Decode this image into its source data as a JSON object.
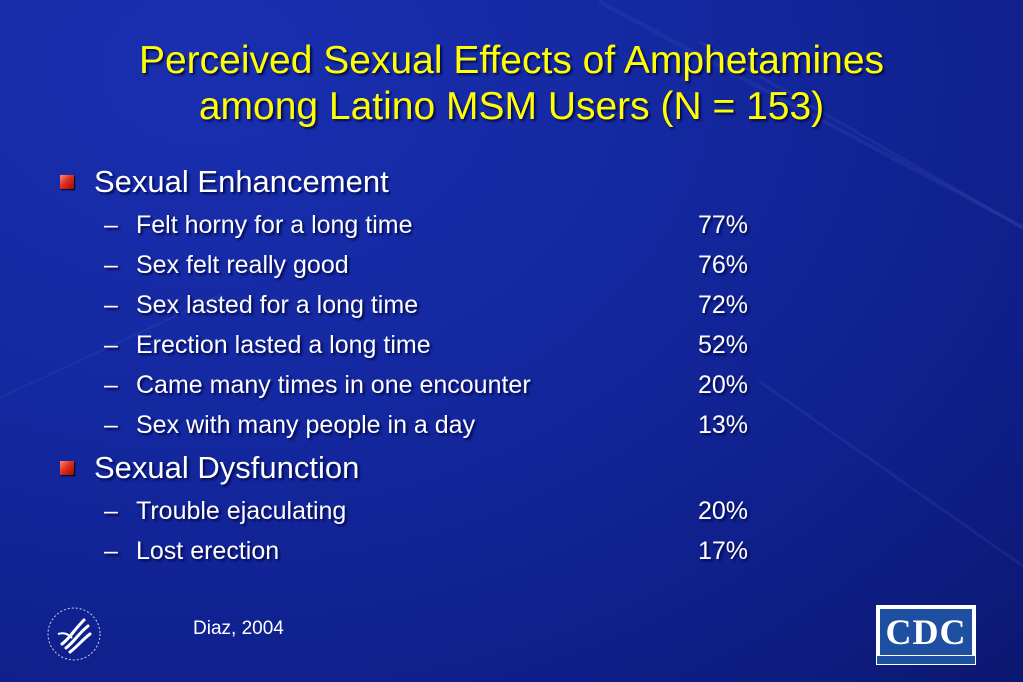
{
  "title_line1": "Perceived Sexual Effects of Amphetamines",
  "title_line2": "among Latino MSM Users (N = 153)",
  "sections": [
    {
      "label": "Sexual Enhancement",
      "items": [
        {
          "text": "Felt horny for a long time",
          "value": "77%"
        },
        {
          "text": "Sex felt really good",
          "value": "76%"
        },
        {
          "text": "Sex lasted for a long time",
          "value": "72%"
        },
        {
          "text": "Erection lasted a long time",
          "value": "52%"
        },
        {
          "text": "Came many times in one encounter",
          "value": "20%"
        },
        {
          "text": "Sex with many people in a day",
          "value": "13%"
        }
      ]
    },
    {
      "label": "Sexual Dysfunction",
      "items": [
        {
          "text": "Trouble ejaculating",
          "value": "20%"
        },
        {
          "text": "Lost erection",
          "value": "17%"
        }
      ]
    }
  ],
  "dash": "–",
  "citation": "Diaz, 2004",
  "cdc_logo_text": "CDC",
  "colors": {
    "title": "#ffff00",
    "text": "#ffffff",
    "background": "#1428a0",
    "bullet": "#e03020"
  }
}
